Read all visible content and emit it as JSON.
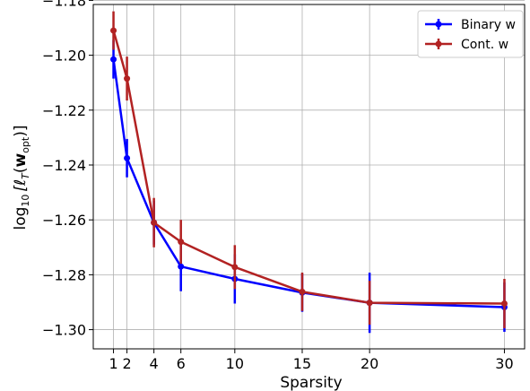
{
  "chart_data": {
    "type": "line",
    "xlabel": "Sparsity",
    "ylabel_prefix": "log",
    "ylabel_sub": "10",
    "ylabel_body": "[ℓ",
    "ylabel_sub2": "T",
    "ylabel_mid": "(",
    "ylabel_bold": "w",
    "ylabel_sub3": "opt",
    "ylabel_end": ")]",
    "xticks": [
      1,
      2,
      4,
      6,
      10,
      15,
      20,
      30
    ],
    "yticks": [
      -1.3,
      -1.28,
      -1.26,
      -1.24,
      -1.22,
      -1.2,
      -1.18
    ],
    "ytick_labels": [
      "−1.30",
      "−1.28",
      "−1.26",
      "−1.24",
      "−1.22",
      "−1.20",
      "−1.18"
    ],
    "xlim": [
      -0.5,
      31.5
    ],
    "ylim": [
      -1.307,
      -1.1815
    ],
    "grid": true,
    "legend_position": "top-right",
    "series": [
      {
        "name": "Binary w",
        "color": "#0000ff",
        "x": [
          1,
          2,
          4,
          6,
          10,
          15,
          20,
          30
        ],
        "y": [
          -1.2015,
          -1.2375,
          -1.261,
          -1.277,
          -1.2815,
          -1.2865,
          -1.2902,
          -1.2918
        ],
        "yerr": [
          0.007,
          0.007,
          0.008,
          0.009,
          0.009,
          0.007,
          0.011,
          0.009
        ]
      },
      {
        "name": "Cont. w",
        "color": "#b22222",
        "x": [
          1,
          2,
          4,
          6,
          10,
          15,
          20,
          30
        ],
        "y": [
          -1.191,
          -1.2085,
          -1.261,
          -1.268,
          -1.2772,
          -1.2862,
          -1.2902,
          -1.2905
        ],
        "yerr": [
          0.007,
          0.008,
          0.009,
          0.008,
          0.008,
          0.007,
          0.008,
          0.009
        ]
      }
    ]
  }
}
